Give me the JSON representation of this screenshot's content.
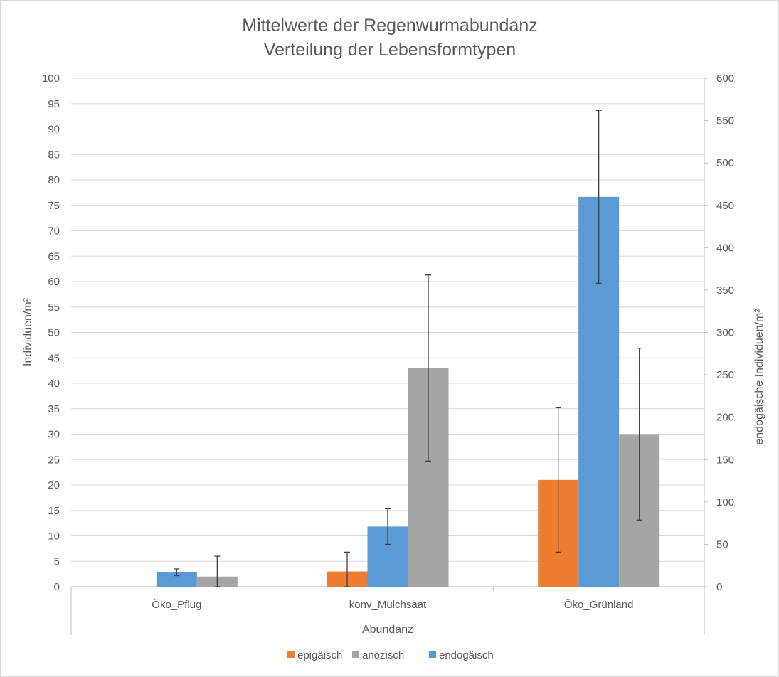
{
  "chart_data": {
    "type": "bar",
    "title": [
      "Mittelwerte der Regenwurmabundanz",
      "Verteilung der Lebensformtypen"
    ],
    "xlabel": "Abundanz",
    "ylabel": "Individuen/m²",
    "y2label": "endogäische Individuen/m²",
    "ylim": [
      0,
      100
    ],
    "y2lim": [
      0,
      600
    ],
    "yticks": [
      "0",
      "5",
      "10",
      "15",
      "20",
      "25",
      "30",
      "35",
      "40",
      "45",
      "50",
      "55",
      "60",
      "65",
      "70",
      "75",
      "80",
      "85",
      "90",
      "95",
      "100"
    ],
    "y2ticks": [
      "0",
      "50",
      "100",
      "150",
      "200",
      "250",
      "300",
      "350",
      "400",
      "450",
      "500",
      "550",
      "600"
    ],
    "categories": [
      "Öko_Pflug",
      "konv_Mulchsaat",
      "Öko_Grünland"
    ],
    "grid": true,
    "legend_position": "bottom",
    "series": [
      {
        "name": "epigäisch",
        "axis": "left",
        "color": "#ED7D31",
        "values": [
          0,
          3,
          21
        ],
        "error": [
          0,
          3.8,
          14.2
        ]
      },
      {
        "name": "anözisch",
        "axis": "left",
        "color": "#A5A5A5",
        "values": [
          2,
          43,
          30
        ],
        "error": [
          4,
          18.3,
          16.9
        ]
      },
      {
        "name": "endogäisch",
        "axis": "right",
        "color": "#5B9BD5",
        "values": [
          17,
          71,
          460
        ],
        "error": [
          4,
          21,
          102
        ]
      }
    ],
    "legend_order": [
      "epigäisch",
      "anözisch",
      "endogäisch"
    ]
  }
}
